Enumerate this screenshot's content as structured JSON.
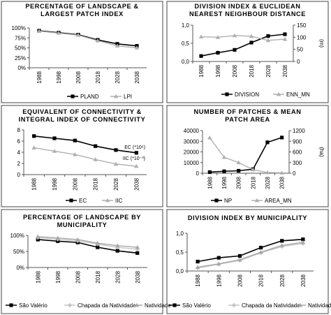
{
  "chart_data": [
    {
      "type": "line",
      "title": [
        "PERCENTAGE OF LANDSCAPE &",
        "LARGEST PATCH INDEX"
      ],
      "categories": [
        "1988",
        "1998",
        "2008",
        "2018",
        "2028",
        "2038"
      ],
      "ylim": [
        0,
        100
      ],
      "yticks": [
        "0%",
        "25%",
        "50%",
        "75%",
        "100%"
      ],
      "grid": false,
      "legend_position": "bottom",
      "series": [
        {
          "name": "PLAND",
          "values": [
            93,
            88,
            83,
            70,
            60,
            55
          ],
          "color": "#000000",
          "marker": "square",
          "axis": "left"
        },
        {
          "name": "LPI",
          "values": [
            92,
            87,
            82,
            68,
            55,
            50
          ],
          "color": "#b0b0b0",
          "marker": "triangle",
          "axis": "left"
        }
      ]
    },
    {
      "type": "line",
      "title": [
        "DIVISION INDEX & EUCLIDEAN",
        "NEAREST NEIGHBOUR DISTANCE"
      ],
      "categories": [
        "1988",
        "1998",
        "2008",
        "2018",
        "2028",
        "2038"
      ],
      "ylim": [
        0,
        1
      ],
      "yticks": [
        "0,0",
        "0,5",
        "1,0"
      ],
      "y2lim": [
        0,
        150
      ],
      "y2ticks": [
        "0",
        "50",
        "100",
        "150"
      ],
      "y2label": "(m)",
      "grid": false,
      "legend_position": "bottom",
      "series": [
        {
          "name": "DIVISION",
          "values": [
            0.15,
            0.24,
            0.32,
            0.52,
            0.7,
            0.75
          ],
          "color": "#000000",
          "marker": "square",
          "axis": "left"
        },
        {
          "name": "ENN_MN",
          "values": [
            102,
            100,
            107,
            104,
            87,
            92
          ],
          "color": "#b0b0b0",
          "marker": "triangle",
          "axis": "right"
        }
      ]
    },
    {
      "type": "line",
      "title": [
        "EQUIVALENT OF CONNECTIVITY &",
        "INTEGRAL INDEX OF CONNECTIVITY"
      ],
      "categories": [
        "1988",
        "1998",
        "2008",
        "2018",
        "2028",
        "2038"
      ],
      "ylim": [
        0,
        8
      ],
      "yticks": [
        "0",
        "2",
        "4",
        "6",
        "8"
      ],
      "grid": false,
      "legend_position": "bottom",
      "annotations": [
        "EC (*10⁶)",
        "IIC (*10⁻³)"
      ],
      "series": [
        {
          "name": "EC",
          "values": [
            6.9,
            6.5,
            6.1,
            5.1,
            4.4,
            3.9
          ],
          "color": "#000000",
          "marker": "square",
          "axis": "left"
        },
        {
          "name": "IIC",
          "values": [
            4.8,
            4.2,
            3.6,
            2.7,
            1.9,
            1.5
          ],
          "color": "#b0b0b0",
          "marker": "triangle",
          "axis": "left"
        }
      ]
    },
    {
      "type": "line",
      "title": [
        "NUMBER OF PATCHES & MEAN",
        "PATCH AREA"
      ],
      "categories": [
        "1988",
        "1998",
        "2008",
        "2018",
        "2028",
        "2038"
      ],
      "ylim": [
        0,
        40000
      ],
      "yticks": [
        "0",
        "10000",
        "20000",
        "30000",
        "40000"
      ],
      "y2lim": [
        0,
        1200
      ],
      "y2ticks": [
        "0",
        "300",
        "600",
        "900",
        "1200"
      ],
      "y2label": "(ha)",
      "grid": false,
      "legend_position": "bottom",
      "series": [
        {
          "name": "NP",
          "values": [
            1000,
            1800,
            2300,
            3800,
            29000,
            33500
          ],
          "color": "#000000",
          "marker": "square",
          "axis": "left"
        },
        {
          "name": "AREA_MN",
          "values": [
            1000,
            450,
            300,
            100,
            20,
            10
          ],
          "color": "#b0b0b0",
          "marker": "triangle",
          "axis": "right"
        }
      ]
    },
    {
      "type": "line",
      "title": [
        "PERCENTAGE OF LANDSCAPE BY",
        "MUNICIPALITY"
      ],
      "categories": [
        "1988",
        "1998",
        "2008",
        "2018",
        "2028",
        "2038"
      ],
      "ylim": [
        0,
        100
      ],
      "yticks": [
        "0%",
        "50%",
        "100%"
      ],
      "grid": false,
      "legend_position": "bottom",
      "series": [
        {
          "name": "São Valério",
          "values": [
            87,
            82,
            78,
            63,
            52,
            45
          ],
          "color": "#000000",
          "marker": "square",
          "axis": "left"
        },
        {
          "name": "Chapada da Natividade",
          "values": [
            93,
            88,
            83,
            73,
            63,
            57
          ],
          "color": "#c4c4c4",
          "marker": "diamond",
          "axis": "left"
        },
        {
          "name": "Natividade",
          "values": [
            96,
            92,
            87,
            76,
            68,
            63
          ],
          "color": "#a8a8a8",
          "marker": "triangle",
          "axis": "left"
        }
      ]
    },
    {
      "type": "line",
      "title": [
        "DIVISION INDEX BY MUNICIPALITY"
      ],
      "categories": [
        "1988",
        "1998",
        "2008",
        "2018",
        "2028",
        "2038"
      ],
      "ylim": [
        0,
        1
      ],
      "yticks": [
        "0,0",
        "0,5",
        "1,0"
      ],
      "grid": false,
      "legend_position": "bottom",
      "series": [
        {
          "name": "São Valério",
          "values": [
            0.25,
            0.35,
            0.4,
            0.62,
            0.8,
            0.84
          ],
          "color": "#000000",
          "marker": "square",
          "axis": "left"
        },
        {
          "name": "Chapada da Natividade",
          "values": [
            0.08,
            0.18,
            0.28,
            0.48,
            0.65,
            0.73
          ],
          "color": "#c4c4c4",
          "marker": "diamond",
          "axis": "left"
        },
        {
          "name": "Natividade",
          "values": [
            0.1,
            0.19,
            0.3,
            0.5,
            0.68,
            0.76
          ],
          "color": "#a8a8a8",
          "marker": "triangle",
          "axis": "left"
        }
      ]
    }
  ]
}
